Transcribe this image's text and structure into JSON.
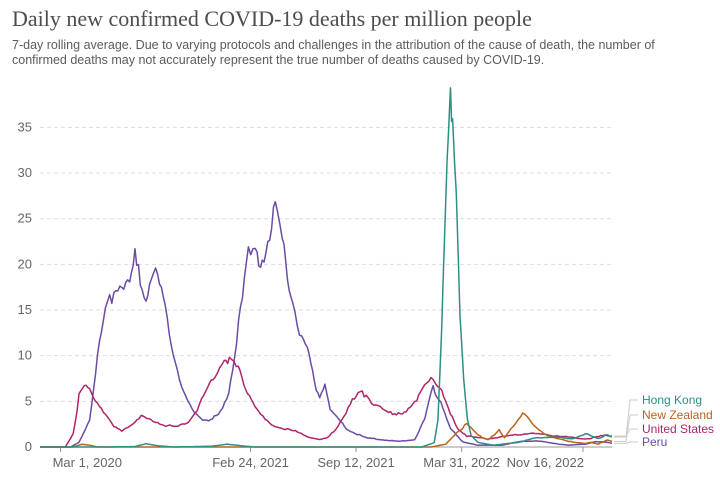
{
  "chart_data": {
    "type": "line",
    "title": "Daily new confirmed COVID-19 deaths per million people",
    "subtitle": "7-day rolling average. Due to varying protocols and challenges in the attribution of the cause of death, the number of confirmed deaths may not accurately represent the true number of deaths caused by COVID-19.",
    "x_ticks": [
      "Mar 1, 2020",
      "Feb 24, 2021",
      "Sep 12, 2021",
      "Mar 31, 2022",
      "Nov 16, 2022"
    ],
    "x_range": [
      "2020-01-22",
      "2023-01-10"
    ],
    "y_ticks": [
      0,
      5,
      10,
      15,
      20,
      25,
      30,
      35
    ],
    "ylim": [
      0,
      38
    ],
    "grid": true,
    "legend_position": "right",
    "series": [
      {
        "name": "Hong Kong",
        "color": "#2e8f83",
        "points": [
          [
            "2020-01-22",
            0
          ],
          [
            "2020-06-01",
            0
          ],
          [
            "2020-07-20",
            0.05
          ],
          [
            "2020-08-10",
            0.35
          ],
          [
            "2020-09-01",
            0.15
          ],
          [
            "2020-10-01",
            0
          ],
          [
            "2020-12-10",
            0.08
          ],
          [
            "2021-01-10",
            0.3
          ],
          [
            "2021-02-05",
            0.15
          ],
          [
            "2021-03-05",
            0
          ],
          [
            "2021-10-01",
            0
          ],
          [
            "2022-01-15",
            0
          ],
          [
            "2022-02-07",
            0.5
          ],
          [
            "2022-02-14",
            3
          ],
          [
            "2022-02-21",
            12
          ],
          [
            "2022-02-28",
            25
          ],
          [
            "2022-03-07",
            35
          ],
          [
            "2022-03-10",
            38
          ],
          [
            "2022-03-14",
            37
          ],
          [
            "2022-03-21",
            28
          ],
          [
            "2022-03-28",
            15
          ],
          [
            "2022-04-04",
            7
          ],
          [
            "2022-04-11",
            3
          ],
          [
            "2022-04-18",
            1.2
          ],
          [
            "2022-05-01",
            0.5
          ],
          [
            "2022-06-01",
            0.2
          ],
          [
            "2022-07-15",
            0.5
          ],
          [
            "2022-08-20",
            1
          ],
          [
            "2022-09-20",
            1.1
          ],
          [
            "2022-10-20",
            0.9
          ],
          [
            "2022-11-01",
            1
          ],
          [
            "2022-11-10",
            1.2
          ],
          [
            "2022-11-20",
            1.5
          ],
          [
            "2022-12-01",
            1.2
          ],
          [
            "2022-12-15",
            0.9
          ],
          [
            "2023-01-01",
            1.4
          ],
          [
            "2023-01-10",
            1.1
          ]
        ]
      },
      {
        "name": "New Zealand",
        "color": "#b8641a",
        "points": [
          [
            "2020-01-22",
            0
          ],
          [
            "2020-03-25",
            0
          ],
          [
            "2020-04-10",
            0.3
          ],
          [
            "2020-04-25",
            0.2
          ],
          [
            "2020-05-10",
            0
          ],
          [
            "2021-10-01",
            0
          ],
          [
            "2022-02-01",
            0
          ],
          [
            "2022-03-01",
            0.3
          ],
          [
            "2022-03-20",
            1.5
          ],
          [
            "2022-04-10",
            2.5
          ],
          [
            "2022-05-01",
            1.3
          ],
          [
            "2022-05-20",
            0.8
          ],
          [
            "2022-06-10",
            1.8
          ],
          [
            "2022-06-20",
            1
          ],
          [
            "2022-07-10",
            2.5
          ],
          [
            "2022-07-25",
            3.9
          ],
          [
            "2022-08-05",
            3
          ],
          [
            "2022-08-20",
            2
          ],
          [
            "2022-09-10",
            1.3
          ],
          [
            "2022-10-01",
            0.9
          ],
          [
            "2022-10-20",
            0.6
          ],
          [
            "2022-11-05",
            0.5
          ],
          [
            "2022-11-20",
            0.4
          ],
          [
            "2022-12-01",
            0.5
          ],
          [
            "2022-12-15",
            0.3
          ],
          [
            "2023-01-01",
            0.8
          ],
          [
            "2023-01-10",
            0.6
          ]
        ]
      },
      {
        "name": "United States",
        "color": "#b0246b",
        "points": [
          [
            "2020-01-22",
            0
          ],
          [
            "2020-03-10",
            0
          ],
          [
            "2020-03-25",
            1.5
          ],
          [
            "2020-04-05",
            5.5
          ],
          [
            "2020-04-15",
            6.5
          ],
          [
            "2020-04-25",
            6.3
          ],
          [
            "2020-05-10",
            5
          ],
          [
            "2020-05-25",
            3.5
          ],
          [
            "2020-06-10",
            2.2
          ],
          [
            "2020-06-25",
            1.8
          ],
          [
            "2020-07-15",
            2.5
          ],
          [
            "2020-08-01",
            3.3
          ],
          [
            "2020-08-15",
            3
          ],
          [
            "2020-09-01",
            2.7
          ],
          [
            "2020-09-20",
            2.3
          ],
          [
            "2020-10-10",
            2.2
          ],
          [
            "2020-10-30",
            2.8
          ],
          [
            "2020-11-15",
            4.2
          ],
          [
            "2020-12-01",
            6
          ],
          [
            "2020-12-15",
            7.5
          ],
          [
            "2021-01-05",
            9.8
          ],
          [
            "2021-01-15",
            9.5
          ],
          [
            "2021-02-01",
            8.5
          ],
          [
            "2021-02-15",
            6.5
          ],
          [
            "2021-03-01",
            5
          ],
          [
            "2021-03-15",
            3.5
          ],
          [
            "2021-04-01",
            2.5
          ],
          [
            "2021-04-15",
            2.2
          ],
          [
            "2021-05-01",
            2
          ],
          [
            "2021-05-20",
            1.7
          ],
          [
            "2021-06-15",
            1.1
          ],
          [
            "2021-07-05",
            0.8
          ],
          [
            "2021-07-20",
            1
          ],
          [
            "2021-08-05",
            2
          ],
          [
            "2021-08-20",
            3.5
          ],
          [
            "2021-09-05",
            5
          ],
          [
            "2021-09-20",
            6
          ],
          [
            "2021-10-01",
            5.7
          ],
          [
            "2021-10-15",
            4.8
          ],
          [
            "2021-11-01",
            4
          ],
          [
            "2021-11-20",
            3.6
          ],
          [
            "2021-12-05",
            3.8
          ],
          [
            "2021-12-20",
            4
          ],
          [
            "2022-01-05",
            5
          ],
          [
            "2022-01-20",
            7
          ],
          [
            "2022-02-01",
            7.7
          ],
          [
            "2022-02-10",
            7.3
          ],
          [
            "2022-02-25",
            5.5
          ],
          [
            "2022-03-10",
            3.5
          ],
          [
            "2022-03-25",
            2
          ],
          [
            "2022-04-10",
            1.2
          ],
          [
            "2022-05-01",
            1
          ],
          [
            "2022-05-20",
            0.9
          ],
          [
            "2022-06-15",
            1.1
          ],
          [
            "2022-07-10",
            1.3
          ],
          [
            "2022-08-05",
            1.5
          ],
          [
            "2022-08-25",
            1.4
          ],
          [
            "2022-09-15",
            1.3
          ],
          [
            "2022-10-15",
            1.1
          ],
          [
            "2022-11-01",
            1
          ],
          [
            "2022-11-20",
            0.9
          ],
          [
            "2022-12-05",
            1
          ],
          [
            "2022-12-20",
            1.2
          ],
          [
            "2023-01-01",
            1.3
          ],
          [
            "2023-01-10",
            1.2
          ]
        ]
      },
      {
        "name": "Peru",
        "color": "#6b4ba6",
        "points": [
          [
            "2020-01-22",
            0
          ],
          [
            "2020-03-20",
            0
          ],
          [
            "2020-04-05",
            0.5
          ],
          [
            "2020-04-25",
            3
          ],
          [
            "2020-05-10",
            10
          ],
          [
            "2020-05-25",
            15
          ],
          [
            "2020-06-10",
            17
          ],
          [
            "2020-06-25",
            18
          ],
          [
            "2020-07-10",
            17.5
          ],
          [
            "2020-07-20",
            20.5
          ],
          [
            "2020-07-30",
            18.5
          ],
          [
            "2020-08-10",
            16
          ],
          [
            "2020-08-20",
            19
          ],
          [
            "2020-09-01",
            18.5
          ],
          [
            "2020-09-15",
            15
          ],
          [
            "2020-10-01",
            10
          ],
          [
            "2020-10-20",
            6
          ],
          [
            "2020-11-05",
            4
          ],
          [
            "2020-11-25",
            3
          ],
          [
            "2020-12-10",
            3
          ],
          [
            "2020-12-25",
            3.5
          ],
          [
            "2021-01-10",
            5
          ],
          [
            "2021-01-25",
            10
          ],
          [
            "2021-02-05",
            16
          ],
          [
            "2021-02-20",
            21
          ],
          [
            "2021-03-05",
            21
          ],
          [
            "2021-03-15",
            20
          ],
          [
            "2021-03-25",
            22
          ],
          [
            "2021-04-05",
            25
          ],
          [
            "2021-04-12",
            25.5
          ],
          [
            "2021-04-25",
            22
          ],
          [
            "2021-05-05",
            19
          ],
          [
            "2021-05-15",
            16
          ],
          [
            "2021-06-01",
            12
          ],
          [
            "2021-06-15",
            10
          ],
          [
            "2021-06-25",
            7
          ],
          [
            "2021-07-05",
            5.5
          ],
          [
            "2021-07-15",
            7
          ],
          [
            "2021-07-25",
            4
          ],
          [
            "2021-08-10",
            3
          ],
          [
            "2021-08-25",
            2
          ],
          [
            "2021-09-10",
            1.5
          ],
          [
            "2021-10-01",
            1
          ],
          [
            "2021-11-01",
            0.8
          ],
          [
            "2021-12-01",
            0.6
          ],
          [
            "2022-01-01",
            0.8
          ],
          [
            "2022-01-20",
            3
          ],
          [
            "2022-02-05",
            6.5
          ],
          [
            "2022-02-20",
            5
          ],
          [
            "2022-03-10",
            2
          ],
          [
            "2022-04-01",
            0.6
          ],
          [
            "2022-05-01",
            0.2
          ],
          [
            "2022-06-15",
            0.2
          ],
          [
            "2022-07-20",
            0.6
          ],
          [
            "2022-08-20",
            0.7
          ],
          [
            "2022-09-20",
            0.4
          ],
          [
            "2022-10-20",
            0.2
          ],
          [
            "2022-11-20",
            0.3
          ],
          [
            "2022-12-10",
            0.6
          ],
          [
            "2023-01-01",
            0.5
          ],
          [
            "2023-01-10",
            0.4
          ]
        ]
      }
    ]
  }
}
